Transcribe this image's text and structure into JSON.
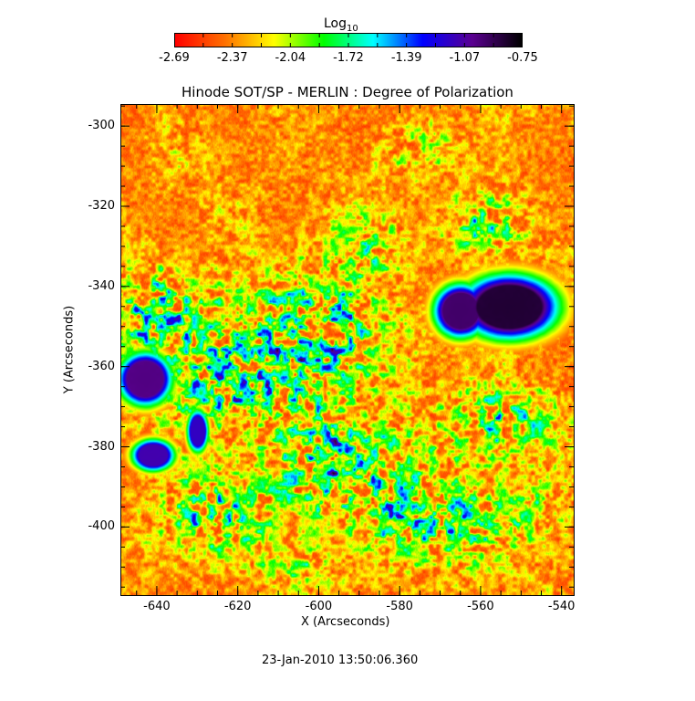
{
  "chart_data": {
    "type": "heatmap",
    "title": "Hinode SOT/SP - MERLIN : Degree of Polarization",
    "xlabel": "X (Arcseconds)",
    "ylabel": "Y (Arcseconds)",
    "xlim": [
      -649,
      -537
    ],
    "ylim": [
      -417,
      -294.5
    ],
    "xticks": [
      "-640",
      "-620",
      "-600",
      "-580",
      "-560",
      "-540"
    ],
    "yticks": [
      "-300",
      "-320",
      "-340",
      "-360",
      "-380",
      "-400"
    ],
    "colorbar": {
      "label": "Log",
      "label_sub": "10",
      "range": [
        -2.69,
        -0.75
      ],
      "ticks": [
        "-2.69",
        "-2.37",
        "-2.04",
        "-1.72",
        "-1.39",
        "-1.07",
        "-0.75"
      ],
      "colormap": [
        "#ff0000",
        "#ff7000",
        "#ffff00",
        "#00ff00",
        "#00ffff",
        "#0000ff",
        "#5a0090",
        "#000000"
      ]
    },
    "features": [
      {
        "name": "sunspot-umbra",
        "x": -553,
        "y": -345,
        "rx": 9,
        "ry": 6,
        "value": -0.85
      },
      {
        "name": "sunspot-umbra",
        "x": -565,
        "y": -346,
        "rx": 5,
        "ry": 5,
        "value": -0.95
      },
      {
        "name": "pore",
        "x": -643,
        "y": -363,
        "rx": 5,
        "ry": 5,
        "value": -1.0
      },
      {
        "name": "pore",
        "x": -641,
        "y": -382,
        "rx": 4,
        "ry": 3,
        "value": -1.1
      },
      {
        "name": "pore",
        "x": -630,
        "y": -376,
        "rx": 2,
        "ry": 4,
        "value": -1.15
      }
    ]
  },
  "footer": {
    "timestamp": "23-Jan-2010 13:50:06.360"
  }
}
